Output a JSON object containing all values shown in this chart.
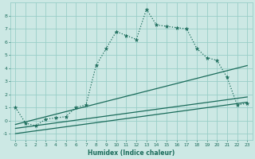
{
  "title": "",
  "xlabel": "Humidex (Indice chaleur)",
  "ylabel": "",
  "bg_color": "#cce8e4",
  "grid_color": "#99cec8",
  "line_color": "#1a6b5a",
  "xlim": [
    -0.5,
    23.5
  ],
  "ylim": [
    -1.5,
    9.0
  ],
  "xticks": [
    0,
    1,
    2,
    3,
    4,
    5,
    6,
    7,
    8,
    9,
    10,
    11,
    12,
    13,
    14,
    15,
    16,
    17,
    18,
    19,
    20,
    21,
    22,
    23
  ],
  "yticks": [
    -1,
    0,
    1,
    2,
    3,
    4,
    5,
    6,
    7,
    8
  ],
  "main_x": [
    0,
    1,
    2,
    3,
    4,
    5,
    6,
    7,
    8,
    9,
    10,
    11,
    12,
    13,
    14,
    15,
    16,
    17,
    18,
    19,
    20,
    21,
    22,
    23
  ],
  "main_y": [
    1.0,
    -0.2,
    -0.4,
    0.1,
    0.2,
    0.3,
    1.0,
    1.2,
    4.2,
    5.5,
    6.8,
    6.5,
    6.2,
    8.5,
    7.3,
    7.2,
    7.1,
    7.0,
    5.5,
    4.8,
    4.6,
    3.3,
    1.2,
    1.3
  ],
  "line2_x": [
    0,
    23
  ],
  "line2_y": [
    -0.3,
    4.2
  ],
  "line3_x": [
    0,
    23
  ],
  "line3_y": [
    -0.6,
    1.8
  ],
  "line4_x": [
    0,
    23
  ],
  "line4_y": [
    -1.0,
    1.4
  ],
  "markersize": 3.5,
  "linewidth": 0.9
}
